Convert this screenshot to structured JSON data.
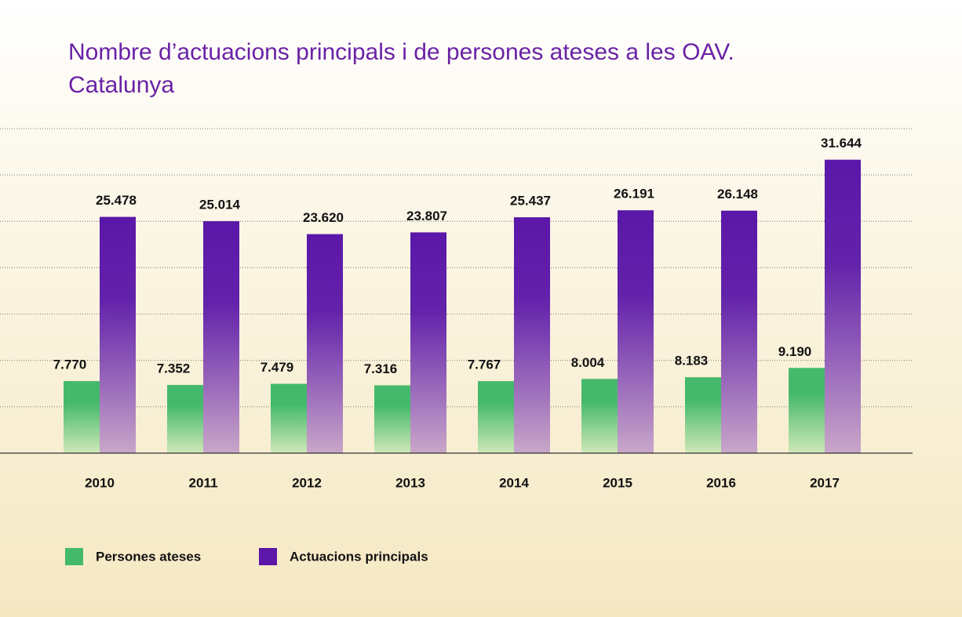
{
  "chart_data": {
    "type": "bar",
    "title": [
      "Nombre d’actuacions principals i de persones ateses a les OAV.",
      "Catalunya"
    ],
    "categories": [
      "2010",
      "2011",
      "2012",
      "2013",
      "2014",
      "2015",
      "2016",
      "2017"
    ],
    "series": [
      {
        "name": "Persones ateses",
        "color": "#45b96b",
        "values": [
          7770,
          7352,
          7479,
          7316,
          7767,
          8004,
          8183,
          9190
        ],
        "value_labels": [
          "7.770",
          "7.352",
          "7.479",
          "7.316",
          "7.767",
          "8.004",
          "8.183",
          "9.190"
        ]
      },
      {
        "name": "Actuacions principals",
        "color": "#5b17a8",
        "values": [
          25478,
          25014,
          23620,
          23807,
          25437,
          26191,
          26148,
          31644
        ],
        "value_labels": [
          "25.478",
          "25.014",
          "23.620",
          "23.807",
          "25.437",
          "26.191",
          "26.148",
          "31.644"
        ]
      }
    ],
    "ylim": [
      0,
      35000
    ],
    "yticks": [
      0,
      5000,
      10000,
      15000,
      20000,
      25000,
      30000,
      35000
    ],
    "grid": true
  }
}
